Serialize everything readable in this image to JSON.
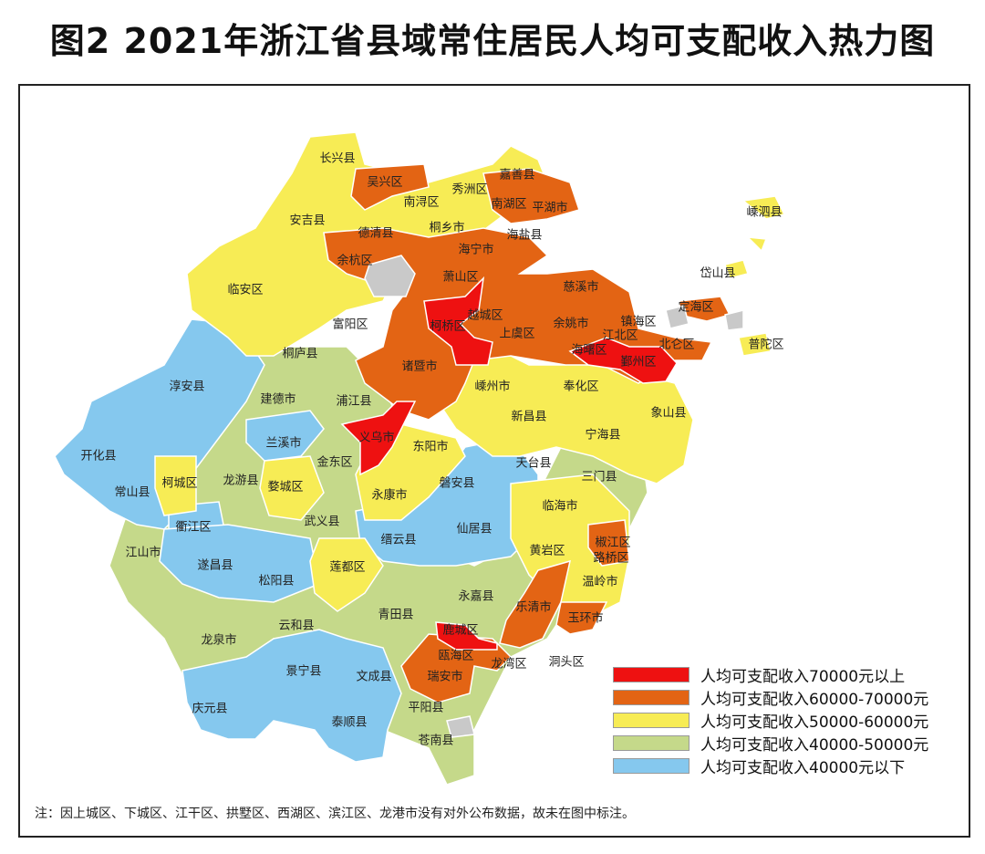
{
  "title": "图2  2021年浙江省县域常住居民人均可支配收入热力图",
  "note": "注：因上城区、下城区、江干区、拱墅区、西湖区、滨江区、龙港市没有对外公布数据，故未在图中标注。",
  "colors": {
    "over70k": "#ee1111",
    "60k_70k": "#e36414",
    "50k_60k": "#f7ec55",
    "40k_50k": "#c5d98a",
    "under40k": "#85c8ee",
    "no_data": "#c9c9c9"
  },
  "legend": [
    {
      "label": "人均可支配收入70000元以上",
      "color": "#ee1111"
    },
    {
      "label": "人均可支配收入60000-70000元",
      "color": "#e36414"
    },
    {
      "label": "人均可支配收入50000-60000元",
      "color": "#f7ec55"
    },
    {
      "label": "人均可支配收入40000-50000元",
      "color": "#c5d98a"
    },
    {
      "label": "人均可支配收入40000元以下",
      "color": "#85c8ee"
    }
  ],
  "regions": [
    {
      "name": "长兴县",
      "cat": "50k_60k"
    },
    {
      "name": "吴兴区",
      "cat": "60k_70k"
    },
    {
      "name": "南浔区",
      "cat": "50k_60k"
    },
    {
      "name": "秀洲区",
      "cat": "50k_60k"
    },
    {
      "name": "嘉善县",
      "cat": "50k_60k"
    },
    {
      "name": "南湖区",
      "cat": "60k_70k"
    },
    {
      "name": "平湖市",
      "cat": "60k_70k"
    },
    {
      "name": "安吉县",
      "cat": "50k_60k"
    },
    {
      "name": "德清县",
      "cat": "50k_60k"
    },
    {
      "name": "桐乡市",
      "cat": "50k_60k"
    },
    {
      "name": "海宁市",
      "cat": "60k_70k"
    },
    {
      "name": "海盐县",
      "cat": "60k_70k"
    },
    {
      "name": "嵊泗县",
      "cat": "50k_60k"
    },
    {
      "name": "余杭区",
      "cat": "60k_70k"
    },
    {
      "name": "萧山区",
      "cat": "60k_70k"
    },
    {
      "name": "临安区",
      "cat": "50k_60k"
    },
    {
      "name": "岱山县",
      "cat": "50k_60k"
    },
    {
      "name": "慈溪市",
      "cat": "60k_70k"
    },
    {
      "name": "定海区",
      "cat": "60k_70k"
    },
    {
      "name": "富阳区",
      "cat": "50k_60k"
    },
    {
      "name": "柯桥区",
      "cat": "over70k"
    },
    {
      "name": "越城区",
      "cat": "60k_70k"
    },
    {
      "name": "上虞区",
      "cat": "60k_70k"
    },
    {
      "name": "余姚市",
      "cat": "60k_70k"
    },
    {
      "name": "镇海区",
      "cat": "60k_70k"
    },
    {
      "name": "江北区",
      "cat": "60k_70k"
    },
    {
      "name": "北仑区",
      "cat": "60k_70k"
    },
    {
      "name": "普陀区",
      "cat": "50k_60k"
    },
    {
      "name": "海曙区",
      "cat": "over70k"
    },
    {
      "name": "鄞州区",
      "cat": "over70k"
    },
    {
      "name": "桐庐县",
      "cat": "50k_60k"
    },
    {
      "name": "淳安县",
      "cat": "under40k"
    },
    {
      "name": "诸暨市",
      "cat": "60k_70k"
    },
    {
      "name": "建德市",
      "cat": "40k_50k"
    },
    {
      "name": "浦江县",
      "cat": "40k_50k"
    },
    {
      "name": "嵊州市",
      "cat": "50k_60k"
    },
    {
      "name": "奉化区",
      "cat": "50k_60k"
    },
    {
      "name": "象山县",
      "cat": "50k_60k"
    },
    {
      "name": "新昌县",
      "cat": "50k_60k"
    },
    {
      "name": "兰溪市",
      "cat": "under40k"
    },
    {
      "name": "义乌市",
      "cat": "over70k"
    },
    {
      "name": "东阳市",
      "cat": "50k_60k"
    },
    {
      "name": "宁海县",
      "cat": "50k_60k"
    },
    {
      "name": "开化县",
      "cat": "under40k"
    },
    {
      "name": "金东区",
      "cat": "40k_50k"
    },
    {
      "name": "天台县",
      "cat": "40k_50k"
    },
    {
      "name": "柯城区",
      "cat": "50k_60k"
    },
    {
      "name": "龙游县",
      "cat": "40k_50k"
    },
    {
      "name": "婺城区",
      "cat": "50k_60k"
    },
    {
      "name": "磐安县",
      "cat": "under40k"
    },
    {
      "name": "三门县",
      "cat": "40k_50k"
    },
    {
      "name": "常山县",
      "cat": "under40k"
    },
    {
      "name": "永康市",
      "cat": "50k_60k"
    },
    {
      "name": "临海市",
      "cat": "50k_60k"
    },
    {
      "name": "衢江区",
      "cat": "under40k"
    },
    {
      "name": "武义县",
      "cat": "40k_50k"
    },
    {
      "name": "缙云县",
      "cat": "under40k"
    },
    {
      "name": "仙居县",
      "cat": "under40k"
    },
    {
      "name": "江山市",
      "cat": "40k_50k"
    },
    {
      "name": "遂昌县",
      "cat": "under40k"
    },
    {
      "name": "黄岩区",
      "cat": "50k_60k"
    },
    {
      "name": "椒江区",
      "cat": "60k_70k"
    },
    {
      "name": "路桥区",
      "cat": "60k_70k"
    },
    {
      "name": "松阳县",
      "cat": "under40k"
    },
    {
      "name": "莲都区",
      "cat": "50k_60k"
    },
    {
      "name": "温岭市",
      "cat": "50k_60k"
    },
    {
      "name": "永嘉县",
      "cat": "40k_50k"
    },
    {
      "name": "青田县",
      "cat": "40k_50k"
    },
    {
      "name": "乐清市",
      "cat": "60k_70k"
    },
    {
      "name": "玉环市",
      "cat": "60k_70k"
    },
    {
      "name": "云和县",
      "cat": "40k_50k"
    },
    {
      "name": "龙泉市",
      "cat": "40k_50k"
    },
    {
      "name": "鹿城区",
      "cat": "over70k"
    },
    {
      "name": "瓯海区",
      "cat": "60k_70k"
    },
    {
      "name": "龙湾区",
      "cat": "60k_70k"
    },
    {
      "name": "洞头区",
      "cat": "40k_50k"
    },
    {
      "name": "景宁县",
      "cat": "under40k"
    },
    {
      "name": "文成县",
      "cat": "under40k"
    },
    {
      "name": "瑞安市",
      "cat": "60k_70k"
    },
    {
      "name": "庆元县",
      "cat": "under40k"
    },
    {
      "name": "泰顺县",
      "cat": "under40k"
    },
    {
      "name": "平阳县",
      "cat": "40k_50k"
    },
    {
      "name": "苍南县",
      "cat": "40k_50k"
    }
  ]
}
